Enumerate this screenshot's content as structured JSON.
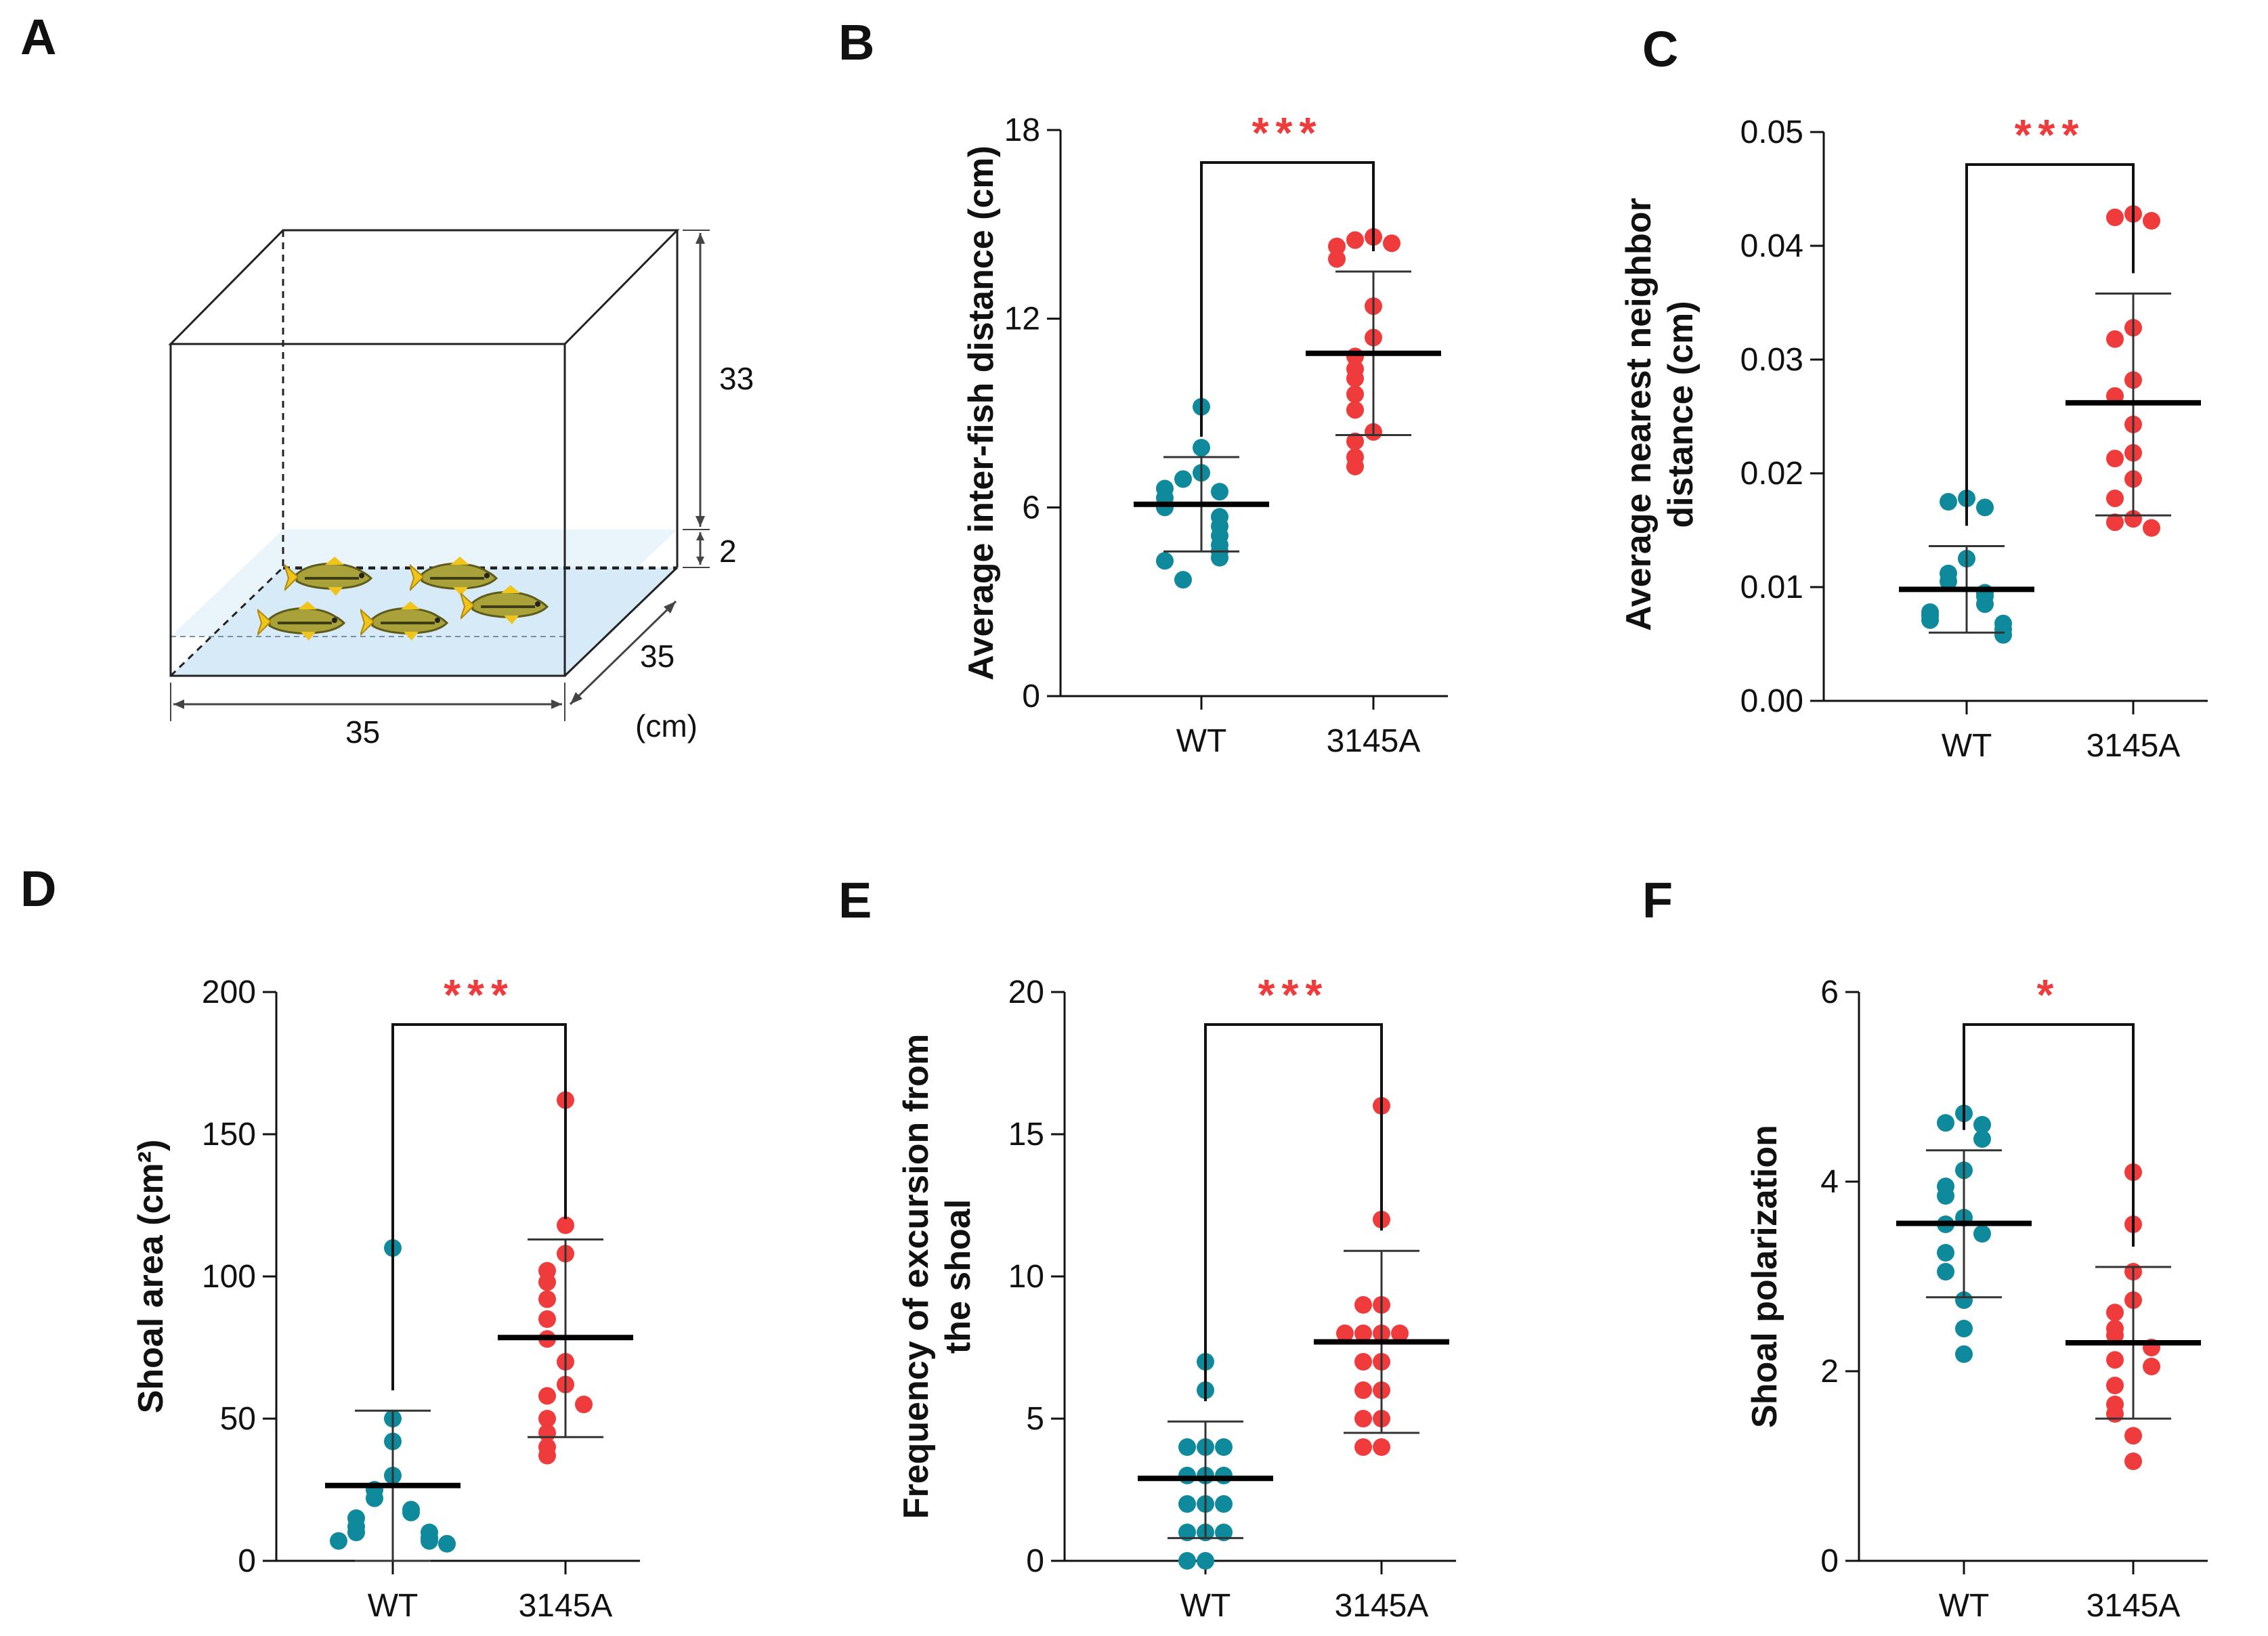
{
  "panel_labels": [
    "A",
    "B",
    "C",
    "D",
    "E",
    "F"
  ],
  "colors": {
    "wt": "#0e8a9c",
    "mut": "#ef3b3b",
    "sig": "#ef3b3b",
    "axis": "#111111",
    "water": "#d6eaf8"
  },
  "tank": {
    "dims": {
      "height": "33",
      "water": "2",
      "depth": "35",
      "width": "35",
      "unit": "(cm)"
    },
    "fish_icon": "zebrafish-icon",
    "fish_count": 5
  },
  "chart_data": [
    {
      "id": "B",
      "type": "scatter",
      "ylabel": [
        "Average inter-fish distance (cm)"
      ],
      "categories": [
        "WT",
        "3145A"
      ],
      "yticks": [
        "0",
        "6",
        "12",
        "18"
      ],
      "ylim": [
        0,
        18
      ],
      "significance": "***",
      "series": [
        {
          "name": "WT",
          "mean": 6.1,
          "sd_low": 4.6,
          "sd_high": 7.6,
          "values": [
            9.2,
            7.9,
            7.1,
            6.9,
            6.5,
            6.6,
            6.3,
            6.0,
            5.7,
            5.4,
            5.1,
            4.8,
            4.6,
            4.4,
            4.3,
            3.7
          ]
        },
        {
          "name": "3145A",
          "mean": 10.9,
          "sd_low": 8.3,
          "sd_high": 13.5,
          "values": [
            14.6,
            14.5,
            14.4,
            14.3,
            13.9,
            12.4,
            11.4,
            10.8,
            10.4,
            10.1,
            9.6,
            9.1,
            8.4,
            8.1,
            7.6,
            7.3
          ]
        }
      ]
    },
    {
      "id": "C",
      "type": "scatter",
      "ylabel": [
        "Average nearest neighbor",
        "distance (cm)"
      ],
      "categories": [
        "WT",
        "3145A"
      ],
      "yticks": [
        "0.00",
        "0.01",
        "0.02",
        "0.03",
        "0.04",
        "0.05"
      ],
      "ylim": [
        0,
        0.05
      ],
      "significance": "***",
      "series": [
        {
          "name": "WT",
          "mean": 0.0098,
          "sd_low": 0.006,
          "sd_high": 0.0136,
          "values": [
            0.0178,
            0.0175,
            0.017,
            0.0125,
            0.0112,
            0.0105,
            0.0095,
            0.0092,
            0.0085,
            0.0078,
            0.0075,
            0.0071,
            0.0068,
            0.0063,
            0.0058
          ]
        },
        {
          "name": "3145A",
          "mean": 0.0262,
          "sd_low": 0.0163,
          "sd_high": 0.0358,
          "values": [
            0.0428,
            0.0425,
            0.0422,
            0.0328,
            0.0318,
            0.0282,
            0.0268,
            0.0243,
            0.0218,
            0.0213,
            0.0195,
            0.0178,
            0.016,
            0.0157,
            0.0152
          ]
        }
      ]
    },
    {
      "id": "D",
      "type": "scatter",
      "ylabel": [
        "Shoal area (cm²)"
      ],
      "categories": [
        "WT",
        "3145A"
      ],
      "yticks": [
        "0",
        "50",
        "100",
        "150",
        "200"
      ],
      "ylim": [
        0,
        200
      ],
      "significance": "***",
      "series": [
        {
          "name": "WT",
          "mean": 26.5,
          "sd_low": 0,
          "sd_high": 52.8,
          "values": [
            110,
            50,
            42,
            30,
            25,
            22,
            18,
            17,
            15,
            12,
            10,
            10,
            8,
            7,
            7,
            6
          ]
        },
        {
          "name": "3145A",
          "mean": 78.5,
          "sd_low": 43.5,
          "sd_high": 113,
          "values": [
            162,
            118,
            108,
            102,
            98,
            92,
            85,
            78,
            70,
            62,
            58,
            55,
            50,
            45,
            40,
            37
          ]
        }
      ]
    },
    {
      "id": "E",
      "type": "scatter",
      "ylabel": [
        "Frequency of excursion from",
        "the shoal"
      ],
      "categories": [
        "WT",
        "3145A"
      ],
      "yticks": [
        "0",
        "5",
        "10",
        "15",
        "20"
      ],
      "ylim": [
        0,
        20
      ],
      "significance": "***",
      "series": [
        {
          "name": "WT",
          "mean": 2.9,
          "sd_low": 0.8,
          "sd_high": 4.9,
          "values": [
            7,
            6,
            4,
            4,
            4,
            3,
            3,
            3,
            2,
            2,
            2,
            1,
            1,
            1,
            0,
            0
          ]
        },
        {
          "name": "3145A",
          "mean": 7.7,
          "sd_low": 4.5,
          "sd_high": 10.9,
          "values": [
            16,
            12,
            9,
            9,
            8,
            8,
            8,
            8,
            7,
            7,
            6,
            6,
            5,
            5,
            4,
            4
          ]
        }
      ]
    },
    {
      "id": "F",
      "type": "scatter",
      "ylabel": [
        "Shoal polarization"
      ],
      "categories": [
        "WT",
        "3145A"
      ],
      "yticks": [
        "0",
        "2",
        "4",
        "6"
      ],
      "ylim": [
        0,
        6
      ],
      "significance": "*",
      "series": [
        {
          "name": "WT",
          "mean": 3.56,
          "sd_low": 2.78,
          "sd_high": 4.33,
          "values": [
            4.72,
            4.62,
            4.6,
            4.45,
            4.12,
            3.95,
            3.85,
            3.62,
            3.55,
            3.45,
            3.25,
            3.05,
            2.75,
            2.45,
            2.18
          ]
        },
        {
          "name": "3145A",
          "mean": 2.3,
          "sd_low": 1.5,
          "sd_high": 3.1,
          "values": [
            4.1,
            3.55,
            3.05,
            2.75,
            2.62,
            2.45,
            2.38,
            2.25,
            2.12,
            2.05,
            1.85,
            1.65,
            1.55,
            1.32,
            1.05
          ]
        }
      ]
    }
  ]
}
